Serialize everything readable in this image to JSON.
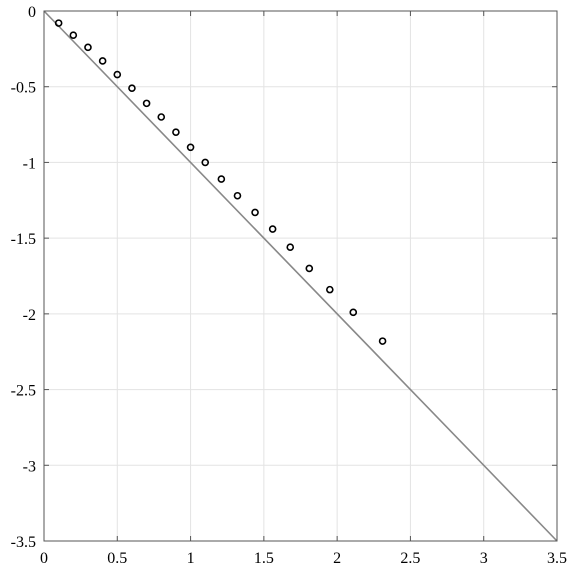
{
  "chart_data": {
    "type": "scatter",
    "title": "",
    "xlabel": "",
    "ylabel": "",
    "xlim": [
      0,
      3.5
    ],
    "ylim": [
      -3.5,
      0
    ],
    "grid": true,
    "x_ticks": [
      0,
      0.5,
      1,
      1.5,
      2,
      2.5,
      3,
      3.5
    ],
    "y_ticks": [
      0,
      -0.5,
      -1,
      -1.5,
      -2,
      -2.5,
      -3,
      -3.5
    ],
    "x_tick_labels": [
      "0",
      "0.5",
      "1",
      "1.5",
      "2",
      "2.5",
      "3",
      "3.5"
    ],
    "y_tick_labels": [
      "0",
      "-0.5",
      "-1",
      "-1.5",
      "-2",
      "-2.5",
      "-3",
      "-3.5"
    ],
    "reference_line": {
      "x": [
        0,
        3.5
      ],
      "y": [
        0,
        -3.5
      ],
      "color": "#888888"
    },
    "series": [
      {
        "marker": "open-circle",
        "color": "#000000",
        "x": [
          0.1,
          0.2,
          0.3,
          0.4,
          0.5,
          0.6,
          0.7,
          0.8,
          0.9,
          1.0,
          1.1,
          1.21,
          1.32,
          1.44,
          1.56,
          1.68,
          1.81,
          1.95,
          2.11,
          2.31
        ],
        "y": [
          -0.08,
          -0.16,
          -0.24,
          -0.33,
          -0.42,
          -0.51,
          -0.61,
          -0.7,
          -0.8,
          -0.9,
          -1.0,
          -1.11,
          -1.22,
          -1.33,
          -1.44,
          -1.56,
          -1.7,
          -1.84,
          -1.99,
          -2.18
        ]
      }
    ]
  }
}
